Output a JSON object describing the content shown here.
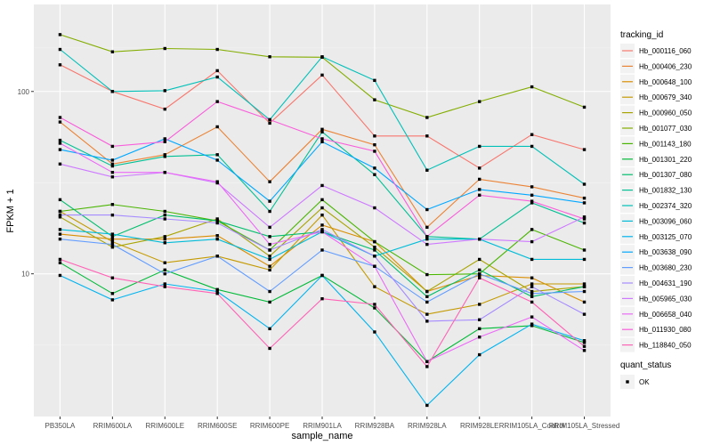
{
  "chart_data": {
    "type": "line",
    "title": "",
    "xlabel": "sample_name",
    "ylabel": "FPKM + 1",
    "y_scale": "log10",
    "y_ticks": [
      10,
      100
    ],
    "ylim": [
      1.65,
      300
    ],
    "grid": true,
    "categories": [
      "PB350LA",
      "RRIM600LA",
      "RRIM600LE",
      "RRIM600SE",
      "RRIM600PE",
      "RRIM901LA",
      "RRIM928BA",
      "RRIM928LA",
      "RRIM928LE",
      "RRIM105LA_Control",
      "RRIM105LA_Stressed"
    ],
    "x_tick_labels": [
      "PB350LA",
      "RRIM600LA",
      "RRIM600LE",
      "RRIM600SE",
      "RRIM600PE",
      "RRIM901LA",
      "RRIM928BA",
      "RRIM928LA",
      "RRIM928LE",
      "RRIM105LA_Control",
      "RRIM105LA_Stressed"
    ],
    "legend": {
      "position": "right",
      "title": "tracking_id",
      "shape_title": "quant_status",
      "shape_entries": [
        "OK"
      ]
    },
    "series": [
      {
        "name": "Hb_000116_060",
        "color": "#F8766D",
        "values": [
          140,
          100,
          80,
          130,
          67,
          123,
          57,
          57,
          38,
          58,
          48
        ]
      },
      {
        "name": "Hb_000406_230",
        "color": "#EB8335",
        "values": [
          68,
          40,
          45,
          64,
          32,
          62,
          51,
          18,
          33,
          30,
          26
        ]
      },
      {
        "name": "Hb_000648_100",
        "color": "#DA8E00",
        "values": [
          16.5,
          15.5,
          15.5,
          16.2,
          11,
          18.5,
          15,
          8,
          9.8,
          9.5,
          7
        ]
      },
      {
        "name": "Hb_000679_340",
        "color": "#C49A00",
        "values": [
          22,
          15,
          11.5,
          12.5,
          10.5,
          21,
          8.5,
          6,
          6.8,
          8.8,
          8.8
        ]
      },
      {
        "name": "Hb_000960_050",
        "color": "#A8A400",
        "values": [
          20.5,
          14,
          16,
          20,
          12.5,
          23,
          14,
          8,
          12,
          8,
          8.5
        ]
      },
      {
        "name": "Hb_001077_030",
        "color": "#83AD00",
        "values": [
          205,
          165,
          172,
          170,
          155,
          154,
          90,
          72,
          88,
          106,
          82
        ]
      },
      {
        "name": "Hb_001143_180",
        "color": "#49B500",
        "values": [
          22,
          24,
          22,
          19.5,
          13.5,
          25.5,
          15,
          9.9,
          10,
          17.5,
          13.5
        ]
      },
      {
        "name": "Hb_001301_220",
        "color": "#00BA38",
        "values": [
          11.5,
          7.8,
          10.5,
          8.2,
          7,
          9.8,
          6.5,
          3.3,
          5,
          5.2,
          4.2
        ]
      },
      {
        "name": "Hb_001307_080",
        "color": "#00BE6C",
        "values": [
          25.5,
          16,
          21,
          19.5,
          16,
          17,
          13.5,
          7.5,
          10.5,
          7.5,
          8.5
        ]
      },
      {
        "name": "Hb_001832_130",
        "color": "#00C094",
        "values": [
          54,
          39,
          44,
          45,
          22,
          60,
          35,
          16,
          15.5,
          24.5,
          19
        ]
      },
      {
        "name": "Hb_002374_320",
        "color": "#00C0B8",
        "values": [
          170,
          100,
          101,
          120,
          70,
          155,
          115,
          37,
          50,
          50,
          31
        ]
      },
      {
        "name": "Hb_003096_060",
        "color": "#00BCD8",
        "values": [
          17.5,
          16.5,
          14.8,
          15.5,
          12,
          17,
          12.5,
          15.5,
          15.5,
          12,
          12
        ]
      },
      {
        "name": "Hb_003125_070",
        "color": "#00B4EF",
        "values": [
          9.8,
          7.2,
          8.8,
          8,
          5,
          9.8,
          4.8,
          1.9,
          3.6,
          5.3,
          4.3
        ]
      },
      {
        "name": "Hb_003638_090",
        "color": "#00A8FF",
        "values": [
          48,
          42,
          55,
          42,
          25,
          53,
          38,
          22.5,
          29,
          27,
          24.5
        ]
      },
      {
        "name": "Hb_003680_230",
        "color": "#619CFF",
        "values": [
          15.5,
          14.5,
          10,
          12.5,
          8,
          13.5,
          11,
          7,
          10,
          7.8,
          8
        ]
      },
      {
        "name": "Hb_004631_190",
        "color": "#A58AFF",
        "values": [
          21,
          21,
          20,
          19,
          13.5,
          17.5,
          12.5,
          5.5,
          5.6,
          8.5,
          6
        ]
      },
      {
        "name": "Hb_005965_030",
        "color": "#CE79FF",
        "values": [
          40,
          34,
          36,
          31.5,
          18,
          30.5,
          23,
          14.5,
          15.5,
          15,
          20.5
        ]
      },
      {
        "name": "Hb_006658_040",
        "color": "#EB6AF7",
        "values": [
          52,
          36,
          36,
          32,
          14.5,
          17,
          11,
          3.3,
          4.5,
          5.8,
          3.8
        ]
      },
      {
        "name": "Hb_011930_080",
        "color": "#F95EDB",
        "values": [
          72,
          50,
          53,
          88,
          70,
          55,
          47,
          16,
          27,
          25,
          20
        ]
      },
      {
        "name": "Hb_118840_050",
        "color": "#FF63B6",
        "values": [
          12,
          9.5,
          8.5,
          7.8,
          3.9,
          7.3,
          6.8,
          3.1,
          9.5,
          7,
          4
        ]
      }
    ]
  }
}
